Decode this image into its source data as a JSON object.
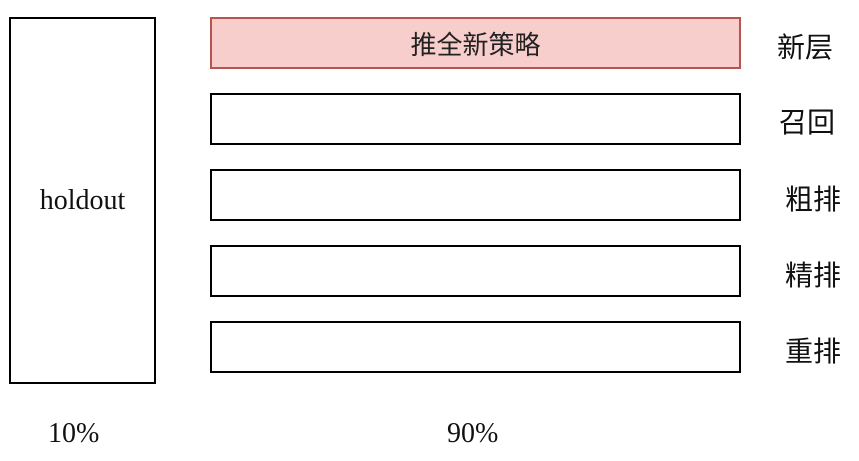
{
  "holdout": {
    "label": "holdout",
    "percent": "10%"
  },
  "layers": [
    {
      "side_label": "新层",
      "content": "推全新策略"
    },
    {
      "side_label": "召回",
      "content": ""
    },
    {
      "side_label": "粗排",
      "content": ""
    },
    {
      "side_label": "精排",
      "content": ""
    },
    {
      "side_label": "重排",
      "content": ""
    }
  ],
  "experiment_percent": "90%",
  "colors": {
    "highlight_fill": "#f8cecc",
    "highlight_border": "#b85450"
  }
}
